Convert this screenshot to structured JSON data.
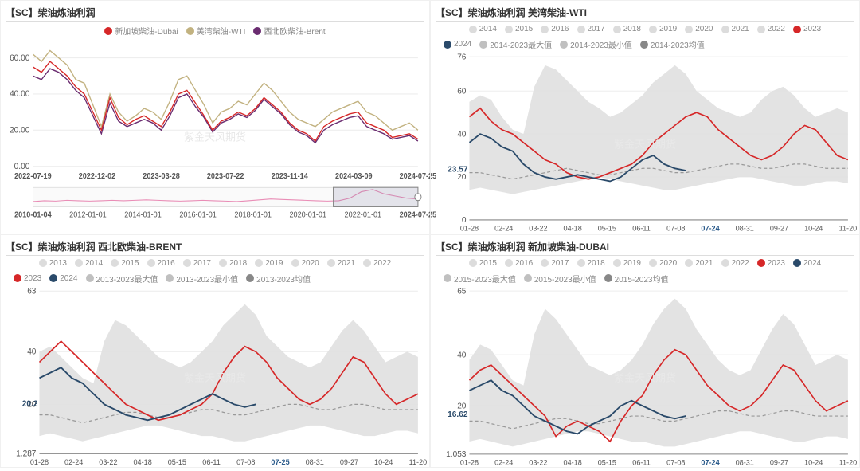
{
  "watermark": "紫金天风期货",
  "panels": {
    "tl": {
      "title": "【SC】柴油炼油利润",
      "legend": [
        {
          "label": "新加坡柴油-Dubai",
          "color": "#d62728"
        },
        {
          "label": "美湾柴油-WTI",
          "color": "#c2b280"
        },
        {
          "label": "西北欧柴油-Brent",
          "color": "#6a2c70"
        }
      ],
      "y_ticks": [
        0,
        20,
        40,
        60
      ],
      "ylim": [
        0,
        68
      ],
      "x_ticks": [
        "2022-07-19",
        "2022-12-02",
        "2023-03-28",
        "2023-07-22",
        "2023-11-14",
        "2024-03-09",
        "2024-07-25"
      ],
      "mini_x_ticks": [
        "2010-01-04",
        "2012-01-01",
        "2014-01-01",
        "2016-01-01",
        "2018-01-01",
        "2020-01-01",
        "2022-01-01",
        "2024-07-25"
      ],
      "series": {
        "sg": [
          55,
          52,
          58,
          54,
          50,
          44,
          40,
          30,
          20,
          38,
          27,
          23,
          26,
          28,
          25,
          22,
          30,
          40,
          42,
          35,
          28,
          20,
          25,
          27,
          30,
          28,
          32,
          38,
          34,
          30,
          24,
          20,
          18,
          14,
          22,
          25,
          27,
          29,
          30,
          24,
          22,
          20,
          16,
          17,
          18,
          15
        ],
        "us": [
          62,
          58,
          64,
          60,
          56,
          48,
          46,
          34,
          22,
          40,
          30,
          25,
          28,
          32,
          30,
          26,
          36,
          48,
          50,
          42,
          34,
          24,
          30,
          32,
          36,
          34,
          40,
          46,
          42,
          36,
          30,
          26,
          24,
          22,
          26,
          30,
          32,
          34,
          36,
          30,
          28,
          24,
          20,
          22,
          24,
          20
        ],
        "eu": [
          50,
          48,
          54,
          52,
          48,
          42,
          38,
          28,
          18,
          35,
          25,
          22,
          24,
          26,
          24,
          20,
          28,
          38,
          40,
          33,
          27,
          19,
          24,
          26,
          29,
          27,
          31,
          37,
          33,
          29,
          23,
          19,
          17,
          13,
          20,
          23,
          25,
          27,
          28,
          22,
          20,
          18,
          15,
          16,
          17,
          14
        ]
      },
      "mini_series": [
        12,
        14,
        13,
        15,
        14,
        13,
        14,
        15,
        14,
        15,
        16,
        15,
        14,
        13,
        14,
        15,
        14,
        13,
        12,
        14,
        16,
        18,
        17,
        16,
        15,
        14,
        13,
        14,
        20,
        35,
        40,
        30,
        25,
        20,
        18
      ]
    },
    "tr": {
      "title": "【SC】柴油炼油利润 美湾柴油-WTI",
      "legend_top": [
        {
          "label": "2014",
          "color": "#dcdcdc"
        },
        {
          "label": "2015",
          "color": "#dcdcdc"
        },
        {
          "label": "2016",
          "color": "#dcdcdc"
        },
        {
          "label": "2017",
          "color": "#dcdcdc"
        },
        {
          "label": "2018",
          "color": "#dcdcdc"
        },
        {
          "label": "2019",
          "color": "#dcdcdc"
        },
        {
          "label": "2020",
          "color": "#dcdcdc"
        },
        {
          "label": "2021",
          "color": "#dcdcdc"
        },
        {
          "label": "2022",
          "color": "#dcdcdc"
        },
        {
          "label": "2023",
          "color": "#d62728"
        }
      ],
      "legend_bottom": [
        {
          "label": "2024",
          "color": "#2a4a6a"
        },
        {
          "label": "2014-2023最大值",
          "color": "#c0c0c0"
        },
        {
          "label": "2014-2023最小值",
          "color": "#c0c0c0"
        },
        {
          "label": "2014-2023均值",
          "color": "#888888"
        }
      ],
      "y_ticks": [
        0,
        20,
        40,
        60,
        76
      ],
      "ylim": [
        0,
        76
      ],
      "x_ticks": [
        "01-28",
        "02-24",
        "03-22",
        "04-18",
        "05-15",
        "06-11",
        "07-08",
        "07-24",
        "08-31",
        "09-27",
        "10-24",
        "11-20"
      ],
      "x_bold_idx": 7,
      "callout": {
        "label": "23.57",
        "value": 23.57
      },
      "band_max": [
        55,
        58,
        56,
        48,
        42,
        40,
        62,
        72,
        70,
        65,
        60,
        55,
        52,
        48,
        50,
        54,
        58,
        64,
        68,
        72,
        68,
        60,
        56,
        52,
        50,
        48,
        50,
        56,
        60,
        62,
        58,
        52,
        48,
        50,
        52,
        50
      ],
      "band_min": [
        14,
        15,
        14,
        13,
        12,
        13,
        14,
        15,
        16,
        17,
        18,
        19,
        20,
        19,
        18,
        17,
        16,
        15,
        14,
        14,
        15,
        16,
        17,
        18,
        19,
        20,
        20,
        19,
        18,
        17,
        16,
        16,
        17,
        18,
        18,
        17
      ],
      "mean": [
        22,
        22,
        21,
        20,
        19,
        20,
        21,
        22,
        23,
        24,
        23,
        22,
        21,
        21,
        22,
        23,
        24,
        24,
        23,
        22,
        22,
        23,
        24,
        25,
        26,
        26,
        25,
        24,
        24,
        25,
        26,
        26,
        25,
        24,
        24,
        24
      ],
      "s2023": [
        48,
        52,
        46,
        42,
        40,
        36,
        32,
        28,
        26,
        22,
        20,
        19,
        20,
        22,
        24,
        26,
        30,
        36,
        40,
        44,
        48,
        50,
        48,
        42,
        38,
        34,
        30,
        28,
        30,
        34,
        40,
        44,
        42,
        36,
        30,
        28
      ],
      "s2024": [
        36,
        40,
        38,
        34,
        32,
        26,
        22,
        20,
        19,
        20,
        21,
        20,
        19,
        18,
        20,
        24,
        28,
        30,
        26,
        24,
        23
      ]
    },
    "bl": {
      "title": "【SC】柴油炼油利润 西北欧柴油-BRENT",
      "legend_top": [
        {
          "label": "2013",
          "color": "#dcdcdc"
        },
        {
          "label": "2014",
          "color": "#dcdcdc"
        },
        {
          "label": "2015",
          "color": "#dcdcdc"
        },
        {
          "label": "2016",
          "color": "#dcdcdc"
        },
        {
          "label": "2017",
          "color": "#dcdcdc"
        },
        {
          "label": "2018",
          "color": "#dcdcdc"
        },
        {
          "label": "2019",
          "color": "#dcdcdc"
        },
        {
          "label": "2020",
          "color": "#dcdcdc"
        },
        {
          "label": "2021",
          "color": "#dcdcdc"
        },
        {
          "label": "2022",
          "color": "#dcdcdc"
        }
      ],
      "legend_bottom": [
        {
          "label": "2023",
          "color": "#d62728"
        },
        {
          "label": "2024",
          "color": "#2a4a6a"
        },
        {
          "label": "2013-2023最大值",
          "color": "#c0c0c0"
        },
        {
          "label": "2013-2023最小值",
          "color": "#c0c0c0"
        },
        {
          "label": "2013-2023均值",
          "color": "#888888"
        }
      ],
      "y_ticks": [
        1.287,
        20,
        40,
        63
      ],
      "ylim": [
        1.287,
        63
      ],
      "x_ticks": [
        "01-28",
        "02-24",
        "03-22",
        "04-18",
        "05-15",
        "06-11",
        "07-08",
        "07-25",
        "08-31",
        "09-27",
        "10-24",
        "11-20"
      ],
      "x_bold_idx": 7,
      "callout": {
        "label": "20.2",
        "value": 20.2
      },
      "band_max": [
        40,
        42,
        38,
        34,
        30,
        28,
        44,
        52,
        50,
        46,
        42,
        38,
        36,
        34,
        36,
        40,
        44,
        50,
        54,
        58,
        54,
        46,
        42,
        38,
        36,
        34,
        36,
        42,
        48,
        52,
        48,
        42,
        36,
        38,
        40,
        38
      ],
      "band_min": [
        8,
        9,
        8,
        7,
        6,
        7,
        8,
        9,
        10,
        11,
        12,
        12,
        11,
        10,
        9,
        8,
        8,
        7,
        6,
        6,
        7,
        8,
        9,
        10,
        11,
        12,
        12,
        11,
        10,
        9,
        8,
        8,
        9,
        10,
        10,
        9
      ],
      "mean": [
        16,
        16,
        15,
        14,
        13,
        14,
        15,
        16,
        17,
        17,
        16,
        15,
        15,
        16,
        17,
        18,
        18,
        17,
        16,
        16,
        17,
        18,
        19,
        20,
        20,
        19,
        18,
        18,
        19,
        20,
        20,
        19,
        18,
        18,
        18,
        18
      ],
      "s2023": [
        36,
        40,
        44,
        40,
        36,
        32,
        28,
        24,
        20,
        18,
        16,
        14,
        15,
        16,
        18,
        20,
        24,
        32,
        38,
        42,
        40,
        36,
        30,
        26,
        22,
        20,
        22,
        26,
        32,
        38,
        36,
        30,
        24,
        20,
        22,
        24
      ],
      "s2024": [
        30,
        32,
        34,
        30,
        28,
        24,
        20,
        18,
        16,
        15,
        14,
        15,
        16,
        18,
        20,
        22,
        24,
        22,
        20,
        19,
        20
      ]
    },
    "br": {
      "title": "【SC】柴油炼油利润 新加坡柴油-DUBAI",
      "legend_top": [
        {
          "label": "2015",
          "color": "#dcdcdc"
        },
        {
          "label": "2016",
          "color": "#dcdcdc"
        },
        {
          "label": "2017",
          "color": "#dcdcdc"
        },
        {
          "label": "2018",
          "color": "#dcdcdc"
        },
        {
          "label": "2019",
          "color": "#dcdcdc"
        },
        {
          "label": "2020",
          "color": "#dcdcdc"
        },
        {
          "label": "2021",
          "color": "#dcdcdc"
        },
        {
          "label": "2022",
          "color": "#dcdcdc"
        },
        {
          "label": "2023",
          "color": "#d62728"
        },
        {
          "label": "2024",
          "color": "#2a4a6a"
        }
      ],
      "legend_bottom": [
        {
          "label": "2015-2023最大值",
          "color": "#c0c0c0"
        },
        {
          "label": "2015-2023最小值",
          "color": "#c0c0c0"
        },
        {
          "label": "2015-2023均值",
          "color": "#888888"
        }
      ],
      "y_ticks": [
        1.053,
        20,
        40,
        65
      ],
      "ylim": [
        1.053,
        65
      ],
      "x_ticks": [
        "01-28",
        "02-24",
        "03-22",
        "04-18",
        "05-15",
        "06-11",
        "07-08",
        "07-24",
        "08-31",
        "09-27",
        "10-24",
        "11-20"
      ],
      "x_bold_idx": 7,
      "callout": {
        "label": "16.62",
        "value": 16.62
      },
      "band_max": [
        38,
        44,
        42,
        36,
        30,
        28,
        48,
        58,
        54,
        48,
        42,
        36,
        34,
        32,
        34,
        38,
        44,
        52,
        58,
        62,
        58,
        50,
        44,
        38,
        34,
        32,
        34,
        42,
        50,
        56,
        52,
        44,
        36,
        38,
        40,
        38
      ],
      "band_min": [
        6,
        7,
        6,
        5,
        4,
        5,
        6,
        7,
        8,
        9,
        10,
        10,
        9,
        8,
        7,
        6,
        6,
        5,
        4,
        4,
        5,
        6,
        7,
        8,
        9,
        10,
        10,
        9,
        8,
        7,
        6,
        6,
        7,
        8,
        8,
        7
      ],
      "mean": [
        14,
        14,
        13,
        12,
        11,
        12,
        13,
        14,
        15,
        15,
        14,
        13,
        13,
        14,
        15,
        16,
        16,
        15,
        14,
        14,
        15,
        16,
        17,
        18,
        18,
        17,
        16,
        16,
        17,
        18,
        18,
        17,
        16,
        16,
        16,
        16
      ],
      "s2023": [
        30,
        34,
        36,
        32,
        28,
        24,
        20,
        16,
        8,
        12,
        14,
        12,
        10,
        6,
        14,
        20,
        24,
        32,
        38,
        42,
        40,
        34,
        28,
        24,
        20,
        18,
        20,
        24,
        30,
        36,
        34,
        28,
        22,
        18,
        20,
        22
      ],
      "s2024": [
        26,
        28,
        30,
        26,
        24,
        20,
        16,
        14,
        12,
        10,
        9,
        12,
        14,
        16,
        20,
        22,
        20,
        18,
        16,
        15,
        16
      ]
    }
  },
  "colors": {
    "band_fill": "#e0e0e0",
    "mean_stroke": "#999999",
    "s2023": "#d62728",
    "s2024": "#2a4a6a",
    "grid": "#eeeeee"
  }
}
